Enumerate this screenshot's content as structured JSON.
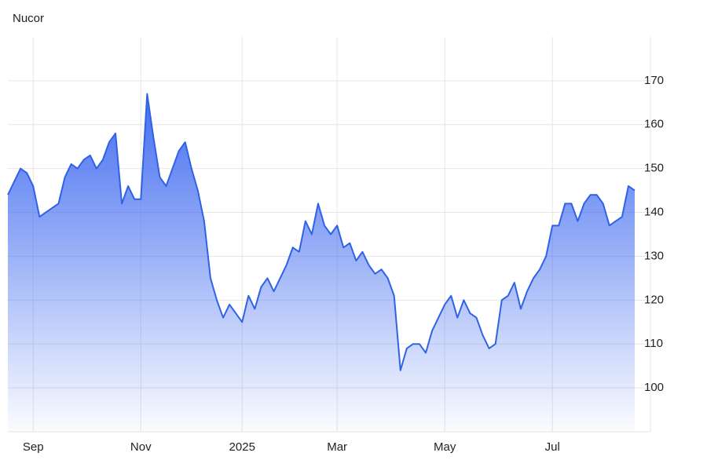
{
  "chart_data": {
    "type": "area",
    "title": "Nucor",
    "categories": [
      null,
      null,
      null,
      null,
      "Sep",
      null,
      null,
      null,
      null,
      null,
      null,
      null,
      null,
      null,
      null,
      null,
      null,
      null,
      null,
      null,
      null,
      "Nov",
      null,
      null,
      null,
      null,
      null,
      null,
      null,
      null,
      null,
      null,
      null,
      null,
      null,
      null,
      null,
      "2025",
      null,
      null,
      null,
      null,
      null,
      null,
      null,
      null,
      null,
      null,
      null,
      null,
      null,
      null,
      "Mar",
      null,
      null,
      null,
      null,
      null,
      null,
      null,
      null,
      null,
      null,
      null,
      null,
      null,
      null,
      null,
      null,
      "May",
      null,
      null,
      null,
      null,
      null,
      null,
      null,
      null,
      null,
      null,
      null,
      null,
      null,
      null,
      null,
      null,
      "Jul",
      null,
      null,
      null,
      null,
      null,
      null,
      null,
      null,
      null,
      null,
      null,
      null,
      null
    ],
    "values": [
      144,
      147,
      150,
      149,
      146,
      139,
      140,
      141,
      142,
      148,
      151,
      150,
      152,
      153,
      150,
      152,
      156,
      158,
      142,
      146,
      143,
      143,
      167,
      157,
      148,
      146,
      150,
      154,
      156,
      150,
      145,
      138,
      125,
      120,
      116,
      119,
      117,
      115,
      121,
      118,
      123,
      125,
      122,
      125,
      128,
      132,
      131,
      138,
      135,
      142,
      137,
      135,
      137,
      132,
      133,
      129,
      131,
      128,
      126,
      127,
      125,
      121,
      104,
      109,
      110,
      110,
      108,
      113,
      116,
      119,
      121,
      116,
      120,
      117,
      116,
      112,
      109,
      110,
      120,
      121,
      124,
      118,
      122,
      125,
      127,
      130,
      137,
      137,
      142,
      142,
      138,
      142,
      144,
      144,
      142,
      137,
      138,
      139,
      146,
      145
    ],
    "color": "#2f62e6",
    "ylim": [
      90,
      180
    ],
    "yticks": [
      100,
      110,
      120,
      130,
      140,
      150,
      160,
      170
    ],
    "grid": true
  }
}
